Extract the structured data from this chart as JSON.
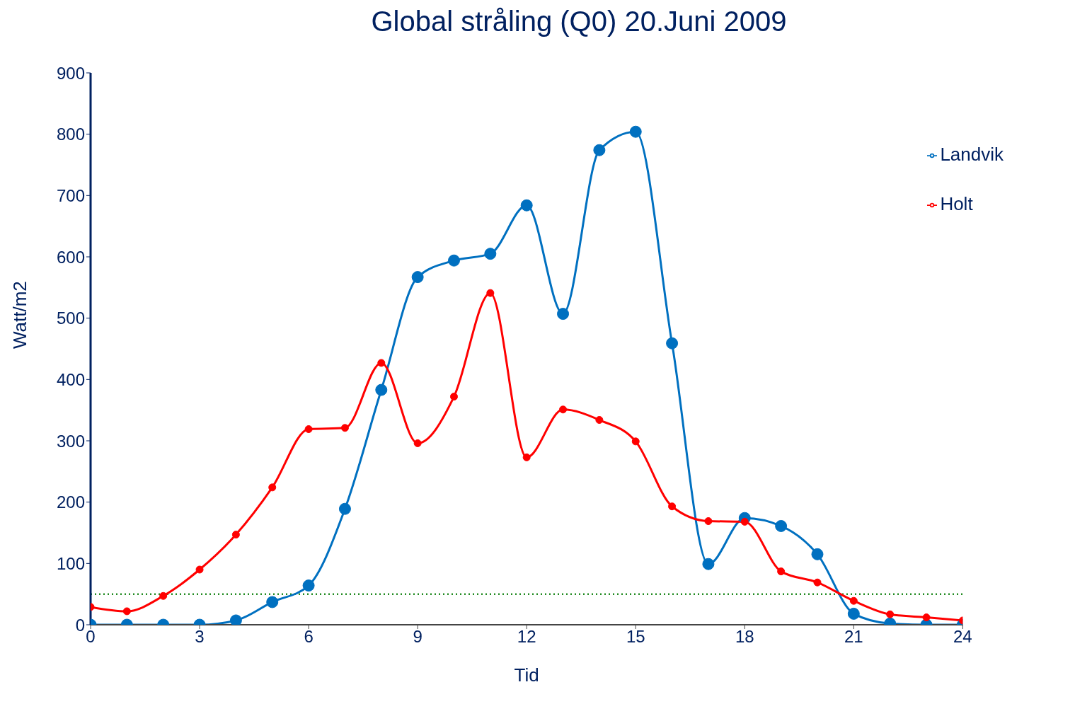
{
  "chart_data": {
    "type": "line",
    "title": "Global stråling (Q0) 20.Juni 2009",
    "xlabel": "Tid",
    "ylabel": "Watt/m2",
    "x": [
      0,
      1,
      2,
      3,
      4,
      5,
      6,
      7,
      8,
      9,
      10,
      11,
      12,
      13,
      14,
      15,
      16,
      17,
      18,
      19,
      20,
      21,
      22,
      23,
      24
    ],
    "series": [
      {
        "name": "Landvik",
        "color": "#0070c0",
        "values": [
          0,
          0,
          0,
          0,
          7,
          37,
          64,
          189,
          383,
          567,
          594,
          605,
          684,
          507,
          774,
          804,
          459,
          99,
          174,
          161,
          115,
          18,
          2,
          0,
          0
        ]
      },
      {
        "name": "Holt",
        "color": "#ff0000",
        "values": [
          29,
          22,
          47,
          90,
          147,
          224,
          319,
          321,
          427,
          296,
          372,
          541,
          273,
          351,
          334,
          299,
          193,
          169,
          168,
          87,
          69,
          39,
          17,
          12,
          7
        ]
      }
    ],
    "xlim": [
      0,
      24
    ],
    "xticks": [
      0,
      3,
      6,
      9,
      12,
      15,
      18,
      21,
      24
    ],
    "ylim": [
      0,
      900
    ],
    "yticks": [
      0,
      100,
      200,
      300,
      400,
      500,
      600,
      700,
      800,
      900
    ],
    "ref_lines": [
      {
        "axis": "y",
        "value": 50,
        "color": "#228b22",
        "line_style": "dotted"
      }
    ],
    "grid": false,
    "legend": "top right",
    "marker": "circle",
    "line_style": "solid"
  }
}
